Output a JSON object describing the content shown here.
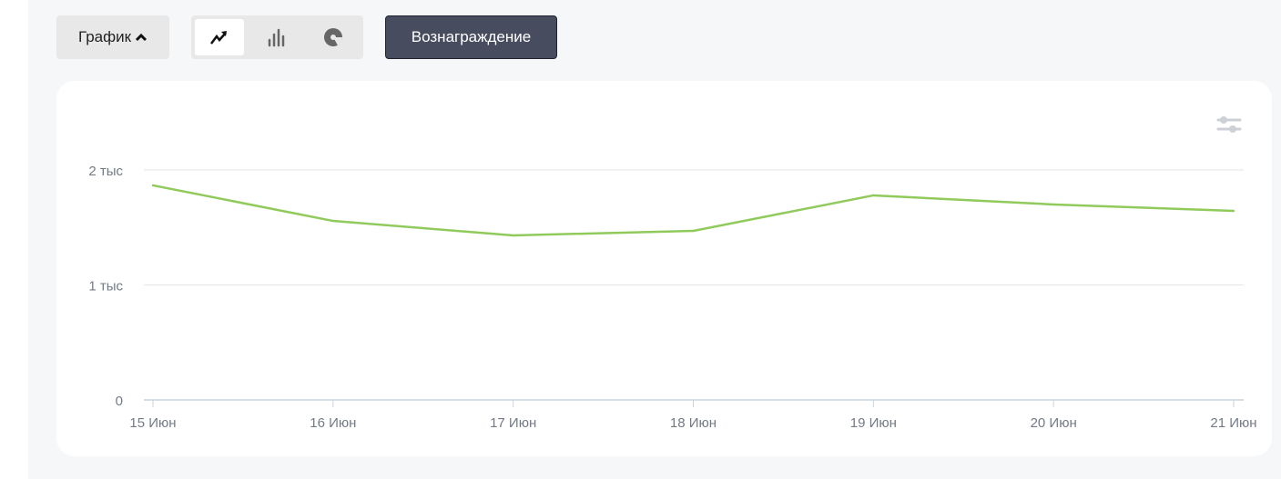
{
  "toolbar": {
    "chart_type_label": "График",
    "view_options": [
      "line-chart-icon",
      "bar-chart-icon",
      "pie-chart-icon"
    ],
    "active_view": "line-chart-icon",
    "metric_button": "Вознаграждение"
  },
  "colors": {
    "line": "#8fca5b",
    "button_dark": "#474d5e"
  },
  "chart_data": {
    "type": "line",
    "categories": [
      "15 Июн",
      "16 Июн",
      "17 Июн",
      "18 Июн",
      "19 Июн",
      "20 Июн",
      "21 Июн"
    ],
    "series": [
      {
        "name": "Вознаграждение",
        "values": [
          1866,
          1557,
          1431,
          1470,
          1779,
          1700,
          1644
        ]
      }
    ],
    "yticks": [
      {
        "value": 0,
        "label": "0"
      },
      {
        "value": 1000,
        "label": "1 тыс"
      },
      {
        "value": 2000,
        "label": "2 тыс"
      }
    ],
    "ylim": [
      0,
      2000
    ],
    "grid": true,
    "title": "",
    "xlabel": "",
    "ylabel": ""
  }
}
